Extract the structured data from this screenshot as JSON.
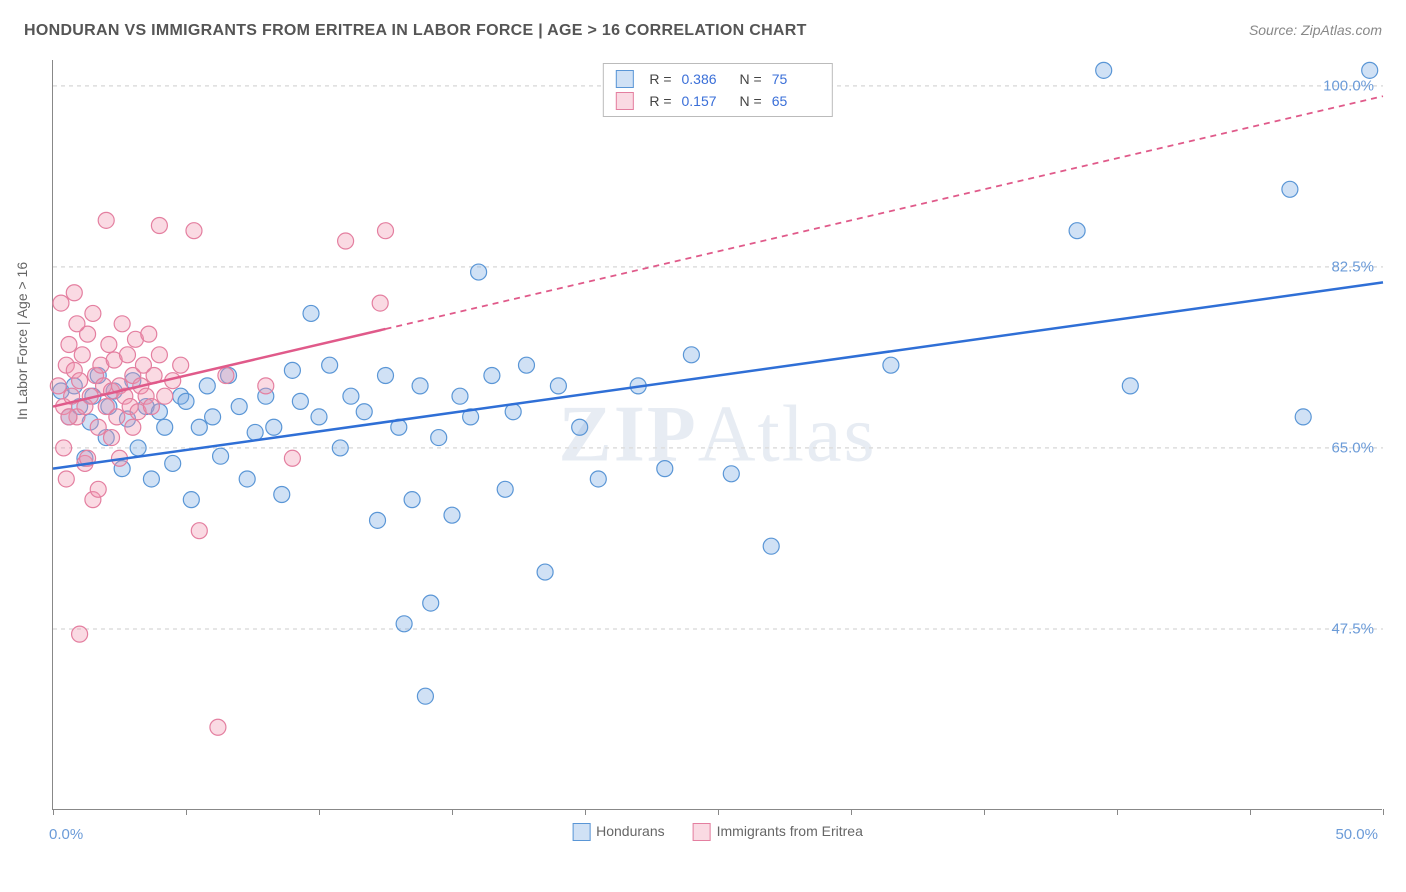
{
  "title": "HONDURAN VS IMMIGRANTS FROM ERITREA IN LABOR FORCE | AGE > 16 CORRELATION CHART",
  "source": "Source: ZipAtlas.com",
  "watermark_a": "ZIP",
  "watermark_b": "Atlas",
  "ylabel": "In Labor Force | Age > 16",
  "chart": {
    "type": "scatter",
    "background_color": "#ffffff",
    "grid_color": "#dddddd",
    "axis_color": "#888888",
    "xlim": [
      0,
      50
    ],
    "ylim": [
      30,
      102.5
    ],
    "xlim_labels": {
      "min": "0.0%",
      "max": "50.0%"
    },
    "xtick_positions": [
      0,
      5,
      10,
      15,
      20,
      25,
      30,
      35,
      40,
      45,
      50
    ],
    "ytick_values": [
      47.5,
      65.0,
      82.5,
      100.0
    ],
    "ytick_labels": [
      "47.5%",
      "65.0%",
      "82.5%",
      "100.0%"
    ],
    "marker_radius": 8,
    "marker_stroke_width": 1.2,
    "trend_line_width": 2.5,
    "series": [
      {
        "key": "hondurans",
        "label": "Hondurans",
        "color_fill": "rgba(120,170,225,0.35)",
        "color_stroke": "#5a96d6",
        "trend_color": "#2f6fd6",
        "R": "0.386",
        "N": "75",
        "trend": {
          "x1": 0,
          "y1": 63,
          "x2": 50,
          "y2": 81,
          "dash_after_x": 50
        },
        "points": [
          [
            0.3,
            70.5
          ],
          [
            0.6,
            68
          ],
          [
            0.8,
            71
          ],
          [
            1.0,
            69
          ],
          [
            1.2,
            64
          ],
          [
            1.4,
            67.5
          ],
          [
            1.5,
            70
          ],
          [
            1.7,
            72
          ],
          [
            2.0,
            66
          ],
          [
            2.1,
            69
          ],
          [
            2.3,
            70.5
          ],
          [
            2.6,
            63
          ],
          [
            2.8,
            67.8
          ],
          [
            3.0,
            71.5
          ],
          [
            3.2,
            65
          ],
          [
            3.5,
            69
          ],
          [
            3.7,
            62
          ],
          [
            4.0,
            68.5
          ],
          [
            4.2,
            67
          ],
          [
            4.5,
            63.5
          ],
          [
            4.8,
            70
          ],
          [
            5.0,
            69.5
          ],
          [
            5.2,
            60
          ],
          [
            5.5,
            67
          ],
          [
            5.8,
            71
          ],
          [
            6.0,
            68
          ],
          [
            6.3,
            64.2
          ],
          [
            6.6,
            72
          ],
          [
            7.0,
            69
          ],
          [
            7.3,
            62
          ],
          [
            7.6,
            66.5
          ],
          [
            8.0,
            70
          ],
          [
            8.3,
            67
          ],
          [
            8.6,
            60.5
          ],
          [
            9.0,
            72.5
          ],
          [
            9.3,
            69.5
          ],
          [
            9.7,
            78
          ],
          [
            10.0,
            68
          ],
          [
            10.4,
            73
          ],
          [
            10.8,
            65
          ],
          [
            11.2,
            70
          ],
          [
            11.7,
            68.5
          ],
          [
            12.2,
            58
          ],
          [
            12.5,
            72
          ],
          [
            13.0,
            67
          ],
          [
            13.2,
            48
          ],
          [
            13.5,
            60
          ],
          [
            13.8,
            71
          ],
          [
            14.2,
            50
          ],
          [
            14.5,
            66
          ],
          [
            15.0,
            58.5
          ],
          [
            15.3,
            70
          ],
          [
            15.7,
            68
          ],
          [
            14.0,
            41
          ],
          [
            16.0,
            82
          ],
          [
            16.5,
            72
          ],
          [
            17.0,
            61
          ],
          [
            17.3,
            68.5
          ],
          [
            17.8,
            73
          ],
          [
            18.5,
            53
          ],
          [
            19.0,
            71
          ],
          [
            19.8,
            67
          ],
          [
            20.5,
            62
          ],
          [
            22.0,
            71
          ],
          [
            23.0,
            63
          ],
          [
            24.0,
            74
          ],
          [
            25.5,
            62.5
          ],
          [
            27.0,
            55.5
          ],
          [
            31.5,
            73
          ],
          [
            38.5,
            86
          ],
          [
            39.5,
            101.5
          ],
          [
            40.5,
            71
          ],
          [
            46.5,
            90
          ],
          [
            47.0,
            68
          ],
          [
            49.5,
            101.5
          ]
        ]
      },
      {
        "key": "eritrea",
        "label": "Immigrants from Eritrea",
        "color_fill": "rgba(240,150,175,0.35)",
        "color_stroke": "#e47fa0",
        "trend_color": "#e05a8a",
        "R": "0.157",
        "N": "65",
        "trend": {
          "x1": 0,
          "y1": 69,
          "x2": 50,
          "y2": 99,
          "dash_after_x": 12.5
        },
        "points": [
          [
            0.2,
            71
          ],
          [
            0.3,
            79
          ],
          [
            0.4,
            69
          ],
          [
            0.5,
            73
          ],
          [
            0.6,
            75
          ],
          [
            0.7,
            70
          ],
          [
            0.8,
            72.5
          ],
          [
            0.9,
            68
          ],
          [
            1.0,
            71.5
          ],
          [
            1.1,
            74
          ],
          [
            1.2,
            69
          ],
          [
            1.3,
            76
          ],
          [
            1.4,
            70
          ],
          [
            1.5,
            78
          ],
          [
            1.6,
            72
          ],
          [
            1.7,
            67
          ],
          [
            1.8,
            73
          ],
          [
            1.9,
            71
          ],
          [
            2.0,
            69
          ],
          [
            2.1,
            75
          ],
          [
            2.2,
            70.5
          ],
          [
            2.3,
            73.5
          ],
          [
            2.4,
            68
          ],
          [
            2.5,
            71
          ],
          [
            2.6,
            77
          ],
          [
            2.7,
            70
          ],
          [
            2.8,
            74
          ],
          [
            2.9,
            69
          ],
          [
            3.0,
            72
          ],
          [
            3.1,
            75.5
          ],
          [
            3.2,
            68.5
          ],
          [
            3.3,
            71
          ],
          [
            3.4,
            73
          ],
          [
            3.5,
            70
          ],
          [
            3.6,
            76
          ],
          [
            3.7,
            69
          ],
          [
            3.8,
            72
          ],
          [
            4.0,
            74
          ],
          [
            4.2,
            70
          ],
          [
            4.5,
            71.5
          ],
          [
            4.8,
            73
          ],
          [
            2.0,
            87
          ],
          [
            0.5,
            62
          ],
          [
            1.0,
            47
          ],
          [
            1.2,
            63.5
          ],
          [
            1.5,
            60
          ],
          [
            4.0,
            86.5
          ],
          [
            0.8,
            80
          ],
          [
            1.3,
            64
          ],
          [
            2.2,
            66
          ],
          [
            0.4,
            65
          ],
          [
            0.9,
            77
          ],
          [
            3.0,
            67
          ],
          [
            2.5,
            64
          ],
          [
            1.7,
            61
          ],
          [
            0.6,
            68
          ],
          [
            5.3,
            86
          ],
          [
            5.5,
            57
          ],
          [
            6.2,
            38
          ],
          [
            6.5,
            72
          ],
          [
            8.0,
            71
          ],
          [
            9.0,
            64
          ],
          [
            11.0,
            85
          ],
          [
            12.3,
            79
          ],
          [
            12.5,
            86
          ]
        ]
      }
    ]
  }
}
